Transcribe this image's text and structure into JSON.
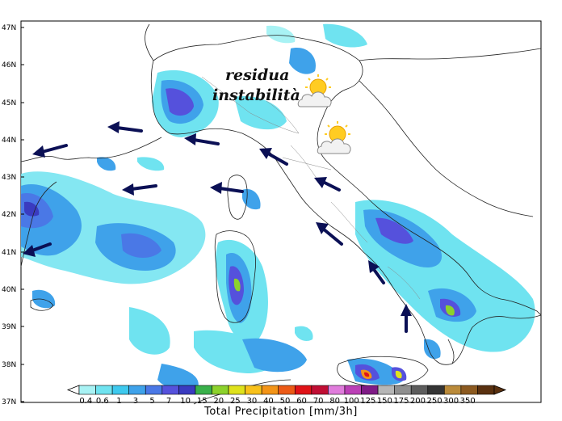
{
  "map": {
    "annotation_lines": [
      "residua",
      "instabilità"
    ],
    "latitude_labels": [
      "47N",
      "46N",
      "45N",
      "44N",
      "43N",
      "42N",
      "41N",
      "40N",
      "39N",
      "38N",
      "37N"
    ],
    "icons": [
      {
        "name": "partly-cloudy-icon",
        "region": "north"
      },
      {
        "name": "partly-cloudy-icon",
        "region": "centre"
      }
    ],
    "arrows": {
      "color": "#0b1055",
      "count": 12
    }
  },
  "colorbar": {
    "title": "Total Precipitation [mm/3h]",
    "levels": [
      "0.4",
      "0.6",
      "1",
      "3",
      "5",
      "7",
      "10",
      "15",
      "20",
      "25",
      "30",
      "40",
      "50",
      "60",
      "70",
      "80",
      "100",
      "125",
      "150",
      "175",
      "200",
      "250",
      "300",
      "350"
    ],
    "colors": [
      "#a8f2f4",
      "#6fe3f0",
      "#3ec9ee",
      "#3fa2ea",
      "#4a78e6",
      "#5551dc",
      "#3a3bc0",
      "#39b04a",
      "#8cd22c",
      "#dfe21c",
      "#f8c11a",
      "#f39417",
      "#ec5a16",
      "#e01318",
      "#c00e34",
      "#e07cdc",
      "#bb3fb6",
      "#7f1b86",
      "#b6b6b6",
      "#8f8f8f",
      "#5d5d5d",
      "#343434",
      "#ba8a3a",
      "#8c5a20",
      "#5a3110"
    ]
  }
}
